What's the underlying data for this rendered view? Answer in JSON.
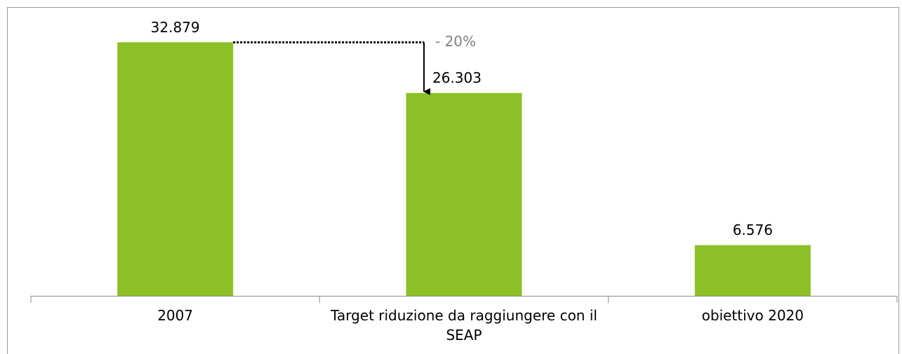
{
  "chart_data": {
    "type": "bar",
    "categories": [
      "2007",
      "Target riduzione da raggiungere con il SEAP",
      "obiettivo 2020"
    ],
    "values": [
      32879,
      26303,
      6576
    ],
    "value_labels": [
      "32.879",
      "26.303",
      "6.576"
    ],
    "color": "#8dc026",
    "ylim": [
      0,
      35000
    ],
    "annotations": [
      "- 20%"
    ]
  }
}
